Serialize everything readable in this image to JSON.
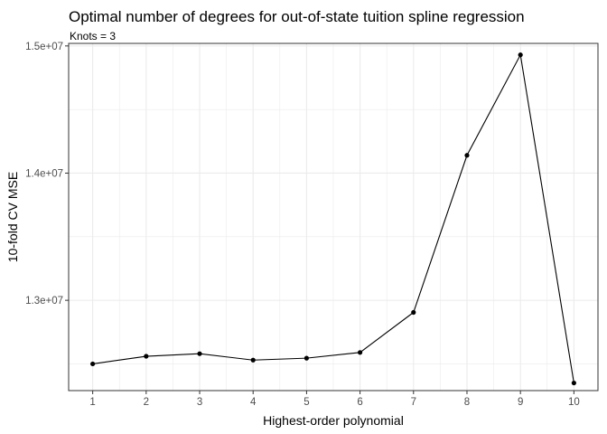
{
  "chart_data": {
    "type": "line",
    "title": "Optimal number of degrees for out-of-state tuition spline regression",
    "subtitle": "Knots = 3",
    "xlabel": "Highest-order polynomial",
    "ylabel": "10-fold CV MSE",
    "x": [
      1,
      2,
      3,
      4,
      5,
      6,
      7,
      8,
      9,
      10
    ],
    "y": [
      12500000,
      12560000,
      12580000,
      12530000,
      12545000,
      12590000,
      12905000,
      14140000,
      14930000,
      12350000
    ],
    "xlim": [
      0.55,
      10.45
    ],
    "ylim": [
      12290000,
      15020000
    ],
    "x_ticks": [
      1,
      2,
      3,
      4,
      5,
      6,
      7,
      8,
      9,
      10
    ],
    "x_tick_labels": [
      "1",
      "2",
      "3",
      "4",
      "5",
      "6",
      "7",
      "8",
      "9",
      "10"
    ],
    "y_ticks": [
      13000000,
      14000000,
      15000000
    ],
    "y_tick_labels": [
      "1.3e+07",
      "1.4e+07",
      "1.5e+07"
    ],
    "grid": true,
    "legend": "none",
    "colors": {
      "line": "#000000",
      "point": "#000000",
      "grid": "#ebebeb",
      "panel_border": "#333333"
    }
  }
}
